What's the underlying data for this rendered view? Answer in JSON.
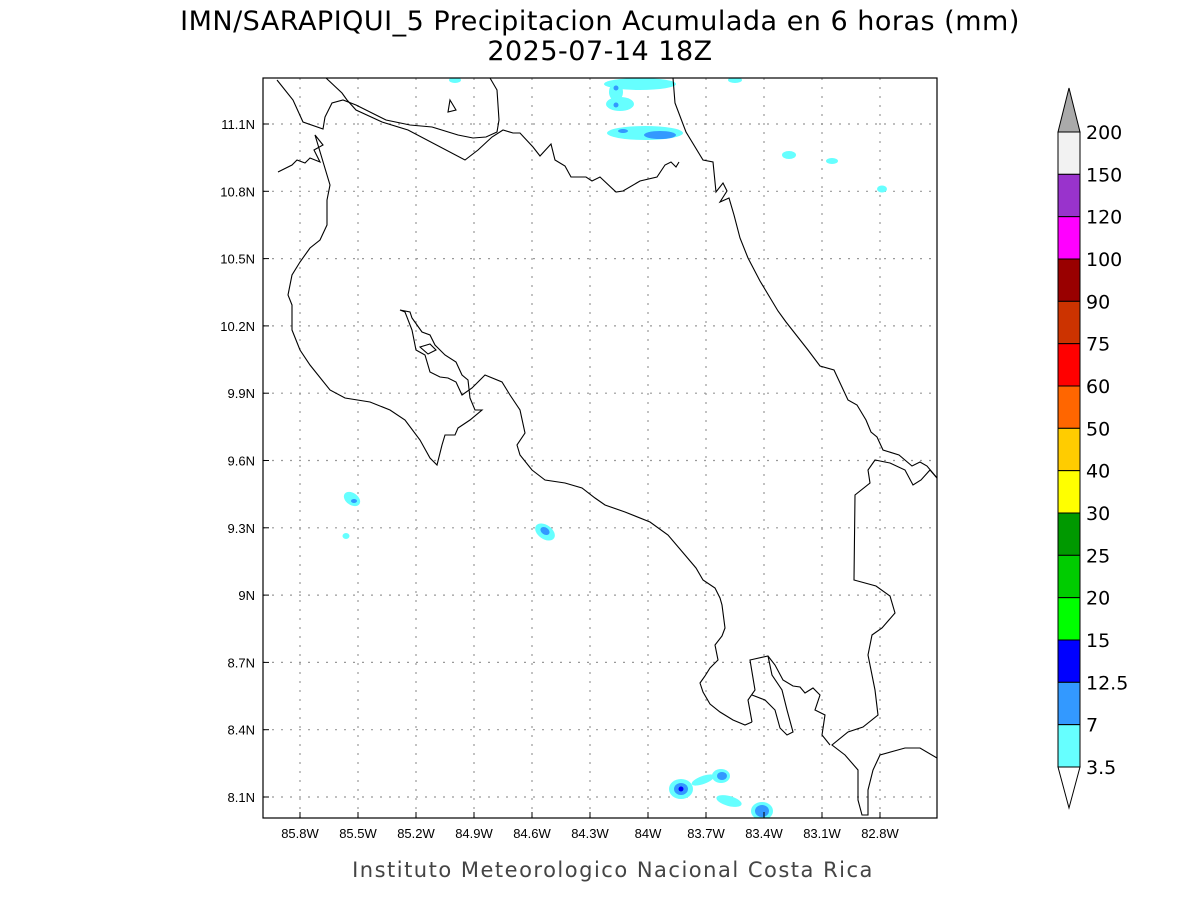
{
  "title": {
    "line1": "IMN/SARAPIQUI_5 Precipitacion Acumulada en 6 horas (mm)",
    "line2": "2025-07-14 18Z"
  },
  "footer": "Instituto Meteorologico Nacional Costa Rica",
  "map": {
    "lon_ticks": [
      "85.8W",
      "85.5W",
      "85.2W",
      "84.9W",
      "84.6W",
      "84.3W",
      "84W",
      "83.7W",
      "83.4W",
      "83.1W",
      "82.8W"
    ],
    "lat_ticks": [
      "11.1N",
      "10.8N",
      "10.5N",
      "10.2N",
      "9.9N",
      "9.6N",
      "9.3N",
      "9N",
      "8.7N",
      "8.4N",
      "8.1N"
    ],
    "grid": "dotted"
  },
  "colorbar": {
    "labels": [
      "200",
      "150",
      "120",
      "100",
      "90",
      "75",
      "60",
      "50",
      "40",
      "30",
      "25",
      "20",
      "15",
      "12.5",
      "7",
      "3.5"
    ],
    "colors": [
      "#f2f2f2",
      "#9933cc",
      "#ff00ff",
      "#990000",
      "#cc3300",
      "#ff0000",
      "#ff6600",
      "#ffcc00",
      "#ffff00",
      "#009900",
      "#00cc00",
      "#00ff00",
      "#0000ff",
      "#3399ff",
      "#66ffff"
    ],
    "over_color": "#aaaaaa",
    "under_color": "#ffffff"
  }
}
